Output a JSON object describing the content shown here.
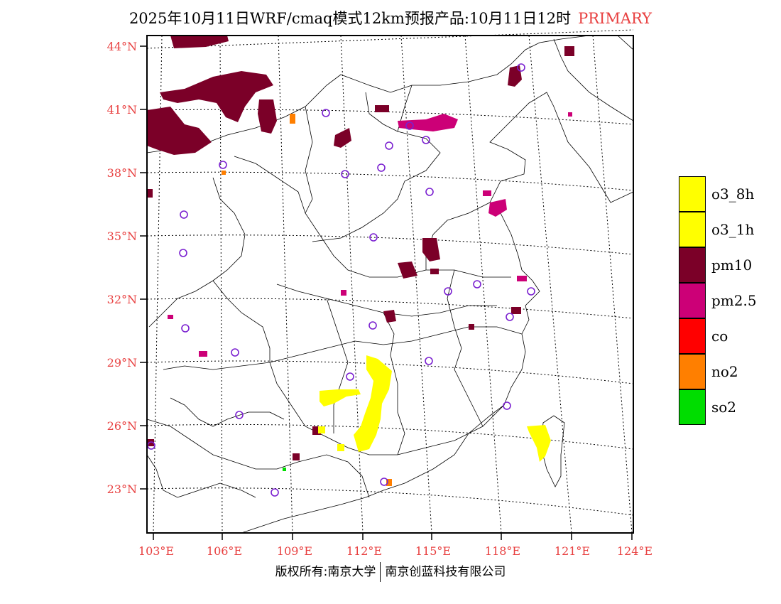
{
  "title": {
    "main": "2025年10月11日WRF/cmaq模式12km预报产品:10月11日12时",
    "tag": "PRIMARY"
  },
  "map": {
    "lat_labels": [
      "44°N",
      "41°N",
      "38°N",
      "35°N",
      "32°N",
      "29°N",
      "26°N",
      "23°N"
    ],
    "lon_labels": [
      "103°E",
      "106°E",
      "109°E",
      "112°E",
      "115°E",
      "118°E",
      "121°E",
      "124°E"
    ],
    "label_color": "#e84040",
    "station_color": "#7a20d0"
  },
  "legend": {
    "items": [
      {
        "label": "o3_8h",
        "color": "#ffff00"
      },
      {
        "label": "o3_1h",
        "color": "#ffff00"
      },
      {
        "label": "pm10",
        "color": "#7b0028"
      },
      {
        "label": "pm2.5",
        "color": "#cc0077"
      },
      {
        "label": "co",
        "color": "#ff0000"
      },
      {
        "label": "no2",
        "color": "#ff7f00"
      },
      {
        "label": "so2",
        "color": "#00dd00"
      }
    ]
  },
  "footer": {
    "left": "版权所有:南京大学",
    "right": "南京创蓝科技有限公司"
  }
}
